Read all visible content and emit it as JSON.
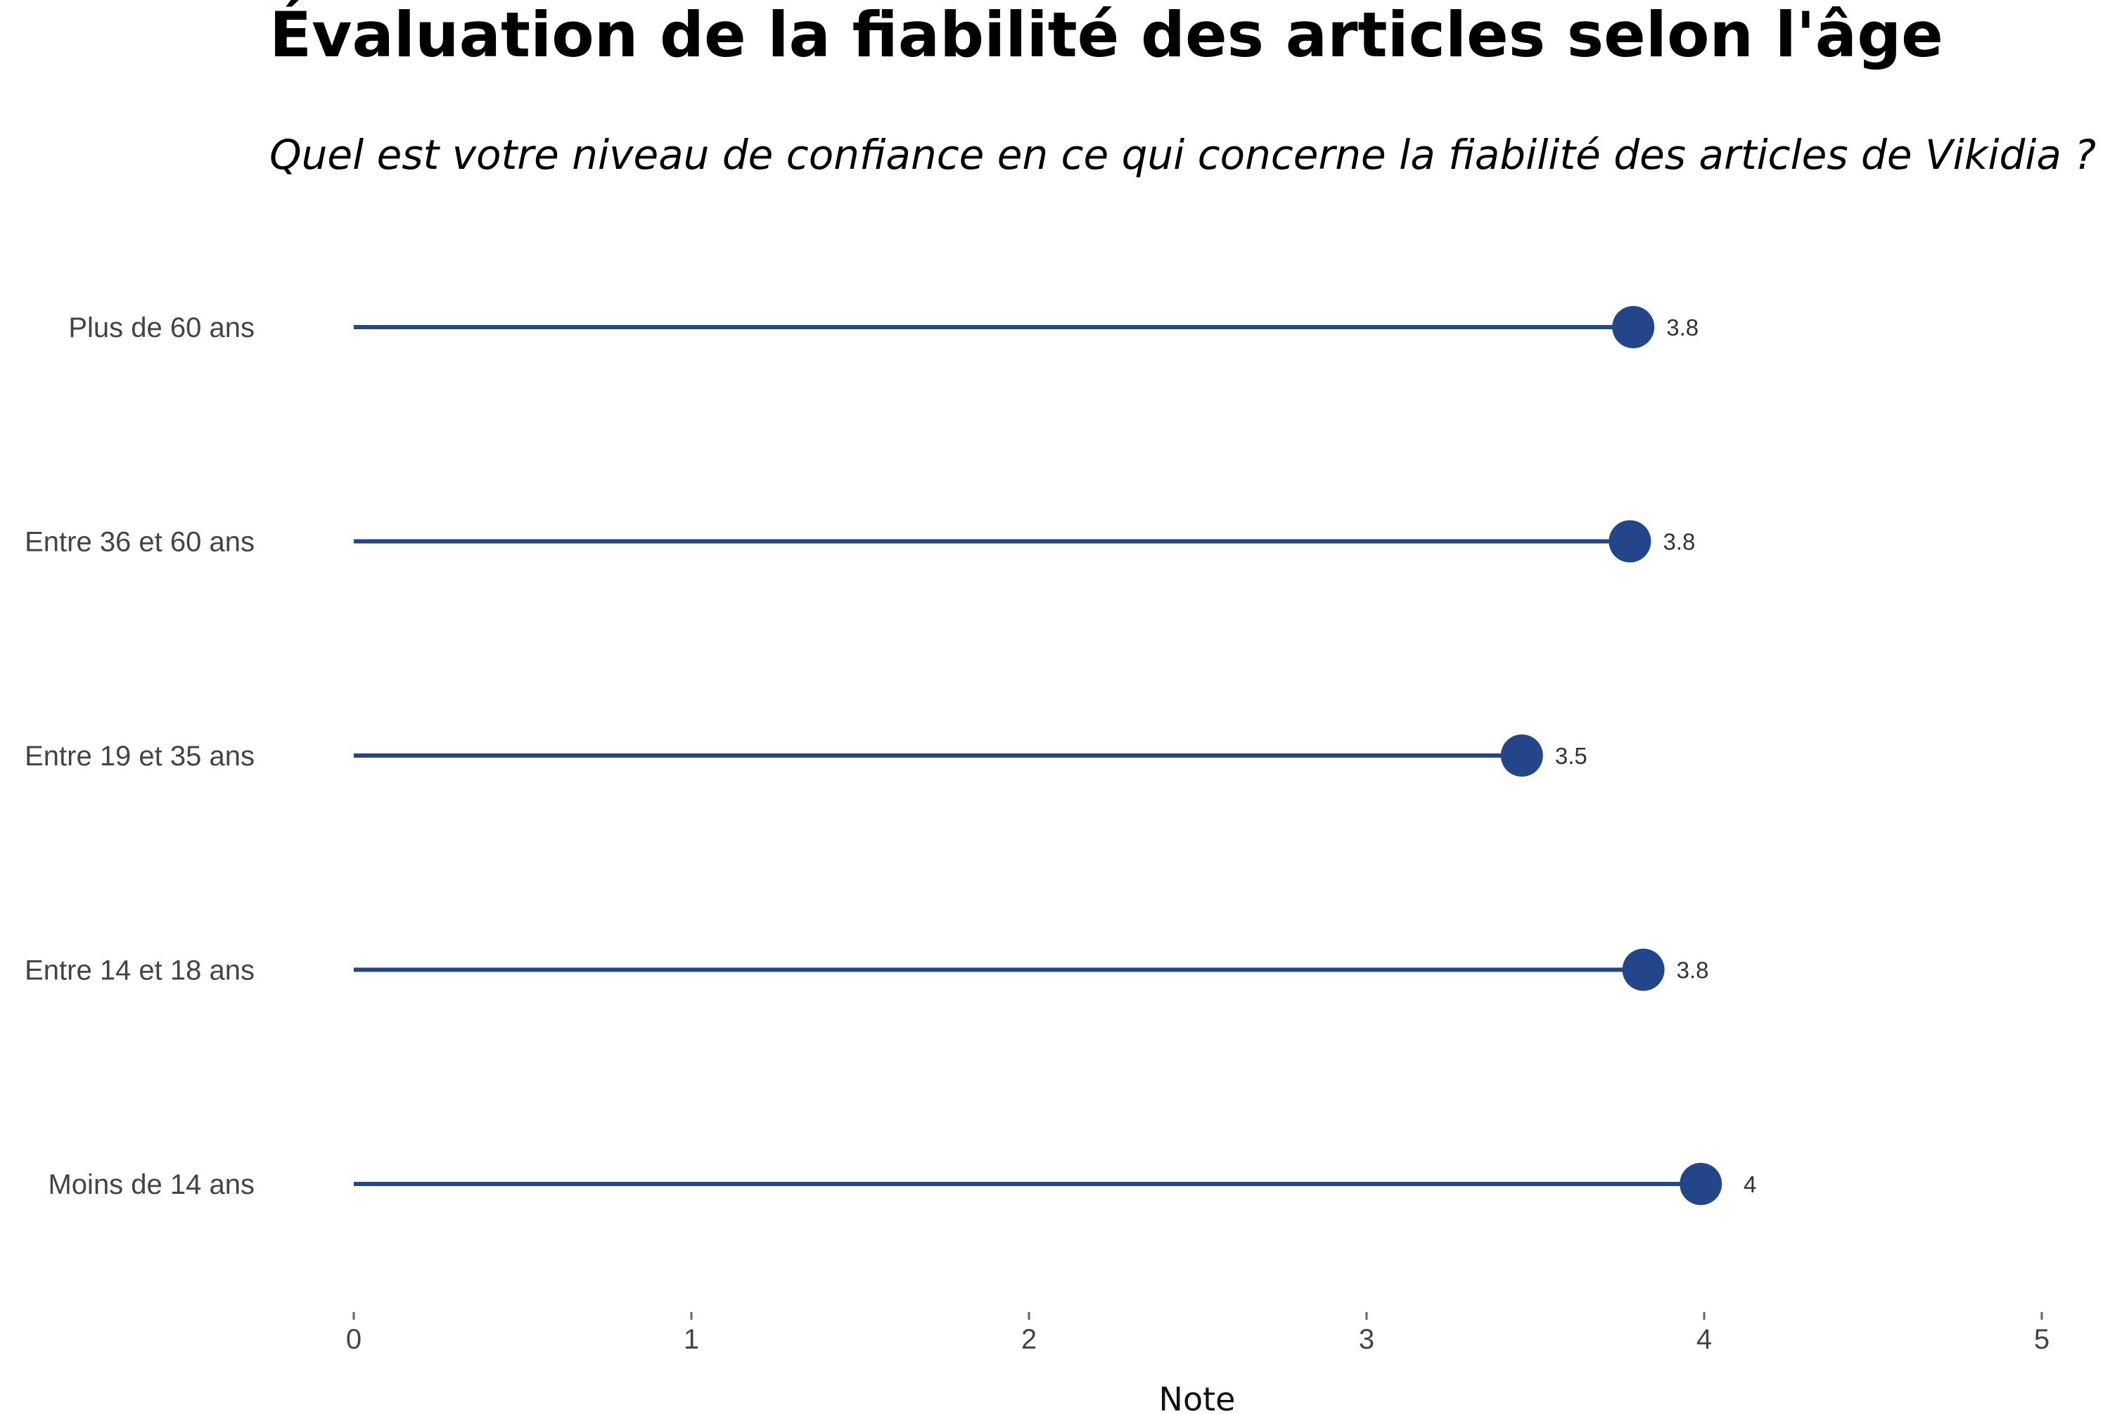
{
  "chart_data": {
    "type": "lollipop",
    "title": "Évaluation de la fiabilité des articles selon l'âge",
    "subtitle": "Quel est votre niveau de confiance en ce qui concerne la fiabilité des articles de Vikidia ?",
    "xlabel": "Note",
    "ylabel": "",
    "xlim": [
      0,
      5
    ],
    "x_ticks": [
      "0",
      "1",
      "2",
      "3",
      "4",
      "5"
    ],
    "grid": false,
    "categories": [
      "Plus de 60 ans",
      "Entre 36 et 60 ans",
      "Entre 19 et 35 ans",
      "Entre 14 et 18 ans",
      "Moins de 14 ans"
    ],
    "values": [
      3.79,
      3.78,
      3.46,
      3.82,
      3.99
    ],
    "value_labels": [
      "3.8",
      "3.8",
      "3.5",
      "3.8",
      "4"
    ],
    "color": "#23458a"
  }
}
